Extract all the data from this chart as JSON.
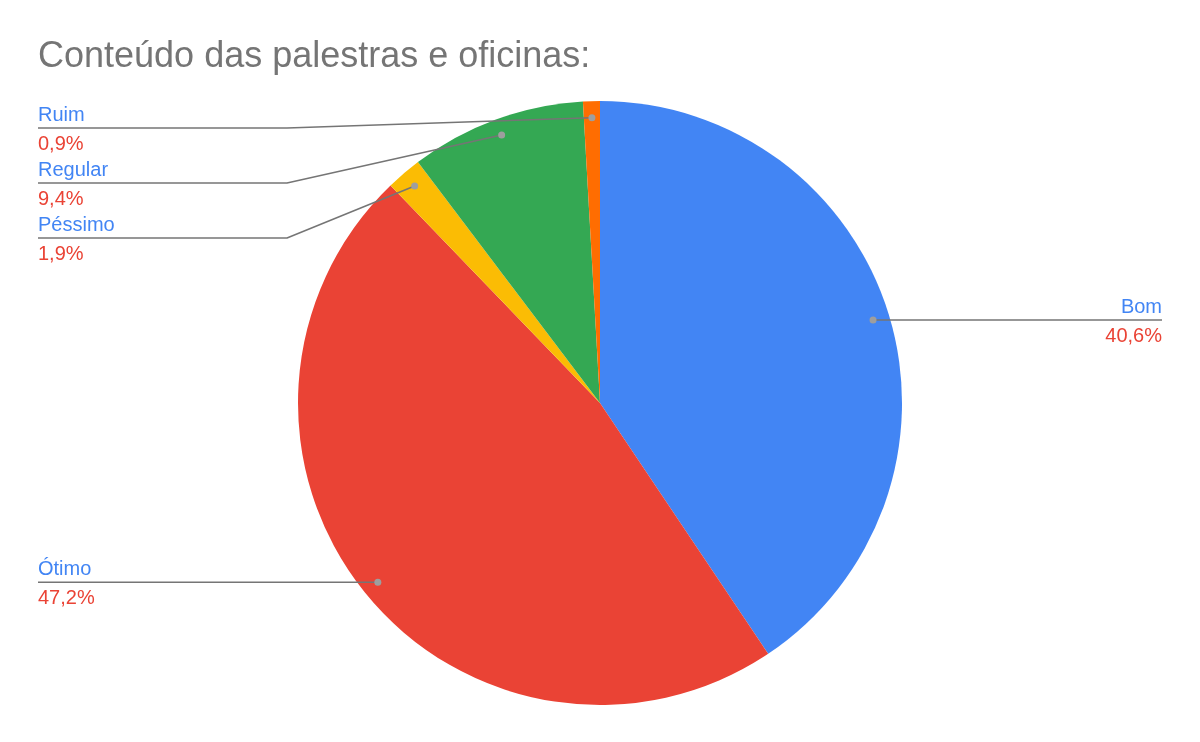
{
  "chart_data": {
    "type": "pie",
    "title": "Conteúdo das palestras e oficinas:",
    "categories": [
      "Bom",
      "Ótimo",
      "Péssimo",
      "Regular",
      "Ruim"
    ],
    "values": [
      40.6,
      47.2,
      1.9,
      9.4,
      0.9
    ],
    "colors": [
      "#4285f4",
      "#ea4335",
      "#fbbc04",
      "#34a853",
      "#ff6d01"
    ],
    "value_labels": [
      "40,6%",
      "47,2%",
      "1,9%",
      "9,4%",
      "0,9%"
    ]
  }
}
